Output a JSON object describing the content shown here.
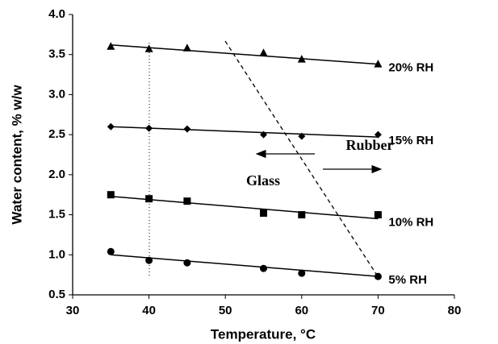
{
  "chart_data": {
    "type": "scatter",
    "xlabel": "Temperature, °C",
    "ylabel": "Water content, % w/w",
    "xlim": [
      30,
      80
    ],
    "xticks": [
      30,
      40,
      50,
      60,
      70,
      80
    ],
    "ylim": [
      0.5,
      4.0
    ],
    "yticks": [
      0.5,
      {
        "value": 1.0,
        "label": "1.0"
      },
      1.5,
      {
        "value": 2.0,
        "label": "2.0"
      },
      2.5,
      {
        "value": 3.0,
        "label": "3.0"
      },
      3.5,
      {
        "value": 4.0,
        "label": "4.0"
      }
    ],
    "grid": false,
    "x": [
      35,
      40,
      45,
      55,
      60,
      70
    ],
    "fit_x": [
      35,
      70
    ],
    "series": [
      {
        "name": "20% RH",
        "color": "#000000",
        "marker": "triangle",
        "values": [
          3.6,
          3.57,
          3.58,
          3.52,
          3.44,
          3.38
        ],
        "fit": [
          3.62,
          3.38
        ]
      },
      {
        "name": "15% RH",
        "color": "#000000",
        "marker": "diamond",
        "values": [
          2.6,
          2.58,
          2.57,
          2.5,
          2.48,
          2.5
        ],
        "fit": [
          2.6,
          2.47
        ]
      },
      {
        "name": "10% RH",
        "color": "#000000",
        "marker": "square",
        "values": [
          1.75,
          1.7,
          1.67,
          1.52,
          1.5,
          1.5
        ],
        "fit": [
          1.73,
          1.45
        ]
      },
      {
        "name": "5% RH",
        "color": "#000000",
        "marker": "circle",
        "values": [
          1.04,
          0.93,
          0.9,
          0.83,
          0.77,
          0.73
        ],
        "fit": [
          1.0,
          0.73
        ]
      }
    ],
    "annotations": [
      "Rubber",
      "Glass"
    ]
  }
}
